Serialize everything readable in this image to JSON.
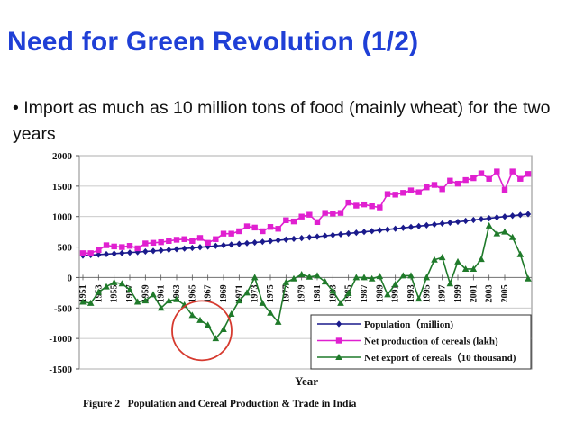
{
  "slide": {
    "title": "Need for Green Revolution (1/2)",
    "bullet_symbol": "•",
    "bullet_text": "Import as much as 10 million tons of food (mainly wheat) for the two years"
  },
  "chart_data": {
    "type": "line",
    "title": "",
    "caption": "Figure 2   Population and Cereal Production & Trade in India",
    "xlabel": "Year",
    "ylabel": "",
    "ylim": [
      -1500,
      2000
    ],
    "yticks": [
      2000,
      1500,
      1000,
      500,
      0,
      -500,
      -1000,
      -1500
    ],
    "xlim": [
      1951,
      2008
    ],
    "xtick_labels": [
      "1951",
      "1953",
      "1955",
      "1957",
      "1959",
      "1961",
      "1963",
      "1965",
      "1967",
      "1969",
      "1971",
      "1973",
      "1975",
      "1977",
      "1979",
      "1981",
      "1983",
      "1985",
      "1987",
      "1989",
      "1991",
      "1993",
      "1995",
      "1997",
      "1999",
      "2001",
      "2003",
      "2005"
    ],
    "grid": true,
    "legend_position": "bottom-right",
    "highlight": {
      "shape": "circle",
      "color": "#d63a2f",
      "around_year": 1966
    },
    "x": [
      1951,
      1952,
      1953,
      1954,
      1955,
      1956,
      1957,
      1958,
      1959,
      1960,
      1961,
      1962,
      1963,
      1964,
      1965,
      1966,
      1967,
      1968,
      1969,
      1970,
      1971,
      1972,
      1973,
      1974,
      1975,
      1976,
      1977,
      1978,
      1979,
      1980,
      1981,
      1982,
      1983,
      1984,
      1985,
      1986,
      1987,
      1988,
      1989,
      1990,
      1991,
      1992,
      1993,
      1994,
      1995,
      1996,
      1997,
      1998,
      1999,
      2000,
      2001,
      2002,
      2003,
      2004,
      2005,
      2006,
      2007,
      2008
    ],
    "series": [
      {
        "name": "Population（million)",
        "color": "#1a1a8c",
        "marker": "diamond",
        "values": [
          361,
          369,
          376,
          384,
          392,
          401,
          409,
          418,
          427,
          436,
          445,
          455,
          465,
          476,
          486,
          497,
          508,
          519,
          530,
          541,
          551,
          563,
          575,
          587,
          599,
          611,
          623,
          635,
          647,
          659,
          671,
          684,
          697,
          710,
          723,
          736,
          749,
          762,
          775,
          788,
          801,
          815,
          829,
          843,
          857,
          871,
          886,
          900,
          914,
          929,
          944,
          958,
          972,
          986,
          1000,
          1014,
          1028,
          1041
        ]
      },
      {
        "name": "Net production of cereals (lakh)",
        "color": "#e020d0",
        "marker": "square",
        "values": [
          400,
          400,
          450,
          530,
          510,
          500,
          520,
          480,
          560,
          570,
          580,
          600,
          620,
          630,
          600,
          650,
          570,
          630,
          720,
          720,
          760,
          840,
          820,
          760,
          830,
          800,
          940,
          920,
          1000,
          1030,
          910,
          1060,
          1050,
          1060,
          1230,
          1180,
          1200,
          1170,
          1150,
          1370,
          1360,
          1390,
          1430,
          1400,
          1480,
          1520,
          1450,
          1590,
          1540,
          1600,
          1630,
          1710,
          1620,
          1740,
          1440,
          1740,
          1620,
          1700
        ]
      },
      {
        "name": "Net export of cereals（10 thousand)",
        "color": "#1f7a2a",
        "marker": "triangle",
        "values": [
          -400,
          -420,
          -240,
          -150,
          -80,
          -100,
          -200,
          -400,
          -380,
          -280,
          -500,
          -380,
          -360,
          -450,
          -620,
          -700,
          -780,
          -1000,
          -850,
          -600,
          -380,
          -250,
          0,
          -420,
          -580,
          -730,
          -80,
          -20,
          50,
          10,
          30,
          -70,
          -220,
          -420,
          -260,
          0,
          0,
          -20,
          20,
          -280,
          -110,
          30,
          30,
          -350,
          0,
          290,
          330,
          -100,
          260,
          140,
          140,
          300,
          850,
          720,
          750,
          660,
          380,
          -20
        ]
      }
    ]
  }
}
